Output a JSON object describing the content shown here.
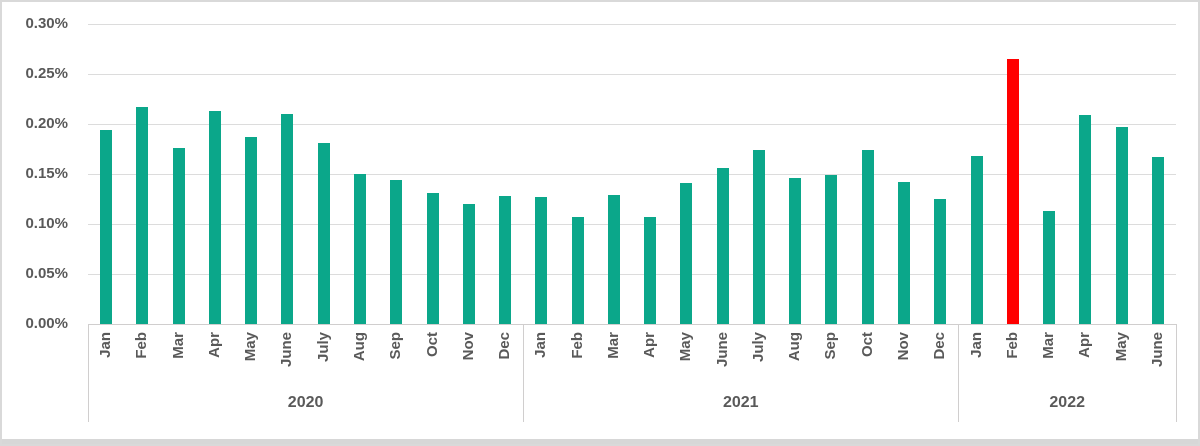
{
  "colors": {
    "bar_teal": "#0BA78A",
    "bar_highlight_red": "#FF0000",
    "gridline": "#DCDCDC",
    "axis_line": "#D0CECE",
    "label_text": "#595959",
    "frame_border": "#D9D9D9"
  },
  "chart_data": {
    "type": "bar",
    "unit": "percent",
    "grid": true,
    "legend": false,
    "ylim": [
      0,
      0.3
    ],
    "y_ticks": [
      {
        "value": 0.0,
        "label": "0.00%"
      },
      {
        "value": 0.05,
        "label": "0.05%"
      },
      {
        "value": 0.1,
        "label": "0.10%"
      },
      {
        "value": 0.15,
        "label": "0.15%"
      },
      {
        "value": 0.2,
        "label": "0.20%"
      },
      {
        "value": 0.25,
        "label": "0.25%"
      },
      {
        "value": 0.3,
        "label": "0.30%"
      }
    ],
    "groups": [
      {
        "year": "2020",
        "categories": [
          "Jan",
          "Feb",
          "Mar",
          "Apr",
          "May",
          "June",
          "July",
          "Aug",
          "Sep",
          "Oct",
          "Nov",
          "Dec"
        ],
        "values": [
          0.194,
          0.217,
          0.176,
          0.213,
          0.187,
          0.21,
          0.181,
          0.15,
          0.144,
          0.131,
          0.12,
          0.128
        ]
      },
      {
        "year": "2021",
        "categories": [
          "Jan",
          "Feb",
          "Mar",
          "Apr",
          "May",
          "June",
          "July",
          "Aug",
          "Sep",
          "Oct",
          "Nov",
          "Dec"
        ],
        "values": [
          0.127,
          0.107,
          0.129,
          0.107,
          0.141,
          0.156,
          0.174,
          0.146,
          0.149,
          0.174,
          0.142,
          0.125
        ]
      },
      {
        "year": "2022",
        "categories": [
          "Jan",
          "Feb",
          "Mar",
          "Apr",
          "May",
          "June"
        ],
        "values": [
          0.168,
          0.265,
          0.113,
          0.209,
          0.197,
          0.167
        ]
      }
    ],
    "highlight": {
      "year": "2022",
      "month": "Feb",
      "color": "#FF0000"
    }
  }
}
